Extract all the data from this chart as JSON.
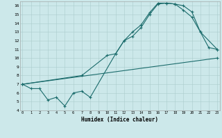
{
  "xlabel": "Humidex (Indice chaleur)",
  "bg_color": "#cce8ea",
  "grid_color": "#aacccc",
  "line_color": "#1a6b6b",
  "line1_x": [
    0,
    1,
    2,
    3,
    4,
    5,
    6,
    7,
    8,
    11,
    12,
    13,
    14,
    15,
    16,
    17,
    18,
    19,
    20,
    21,
    23
  ],
  "line1_y": [
    7.0,
    6.5,
    6.5,
    5.2,
    5.5,
    4.5,
    6.0,
    6.2,
    5.5,
    10.5,
    12.0,
    13.0,
    13.8,
    15.2,
    16.3,
    16.3,
    16.2,
    15.5,
    14.7,
    13.0,
    11.0
  ],
  "line2_x": [
    0,
    7,
    10,
    11,
    12,
    13,
    14,
    15,
    16,
    17,
    18,
    19,
    20,
    21,
    22,
    23
  ],
  "line2_y": [
    7.0,
    8.0,
    10.3,
    10.5,
    12.0,
    12.5,
    13.5,
    15.0,
    16.2,
    16.3,
    16.2,
    16.0,
    15.3,
    13.0,
    11.2,
    11.0
  ],
  "line3_x": [
    0,
    23
  ],
  "line3_y": [
    7.0,
    10.0
  ],
  "xlim": [
    -0.3,
    23.3
  ],
  "ylim": [
    4,
    16.5
  ],
  "xticks": [
    0,
    1,
    2,
    3,
    4,
    5,
    6,
    7,
    8,
    9,
    10,
    11,
    12,
    13,
    14,
    15,
    16,
    17,
    18,
    19,
    20,
    21,
    22,
    23
  ],
  "yticks": [
    4,
    5,
    6,
    7,
    8,
    9,
    10,
    11,
    12,
    13,
    14,
    15,
    16
  ]
}
